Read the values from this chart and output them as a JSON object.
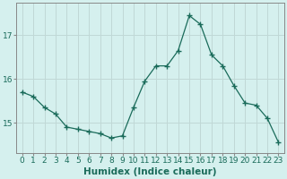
{
  "xlabel": "Humidex (Indice chaleur)",
  "x": [
    0,
    1,
    2,
    3,
    4,
    5,
    6,
    7,
    8,
    9,
    10,
    11,
    12,
    13,
    14,
    15,
    16,
    17,
    18,
    19,
    20,
    21,
    22,
    23
  ],
  "y": [
    15.7,
    15.6,
    15.35,
    15.2,
    14.9,
    14.85,
    14.8,
    14.75,
    14.65,
    14.7,
    15.35,
    15.95,
    16.3,
    16.3,
    16.65,
    17.45,
    17.25,
    16.55,
    16.3,
    15.85,
    15.45,
    15.4,
    15.1,
    14.55
  ],
  "line_color": "#1a6b5a",
  "marker": "+",
  "marker_size": 4,
  "bg_color": "#d5f0ee",
  "grid_color": "#c0d8d6",
  "axis_color": "#888888",
  "tick_label_color": "#1a6b5a",
  "xlabel_color": "#1a6b5a",
  "ylim": [
    14.3,
    17.75
  ],
  "yticks": [
    15,
    16,
    17
  ],
  "xtick_labels": [
    "0",
    "1",
    "2",
    "3",
    "4",
    "5",
    "6",
    "7",
    "8",
    "9",
    "10",
    "11",
    "12",
    "13",
    "14",
    "15",
    "16",
    "17",
    "18",
    "19",
    "20",
    "21",
    "22",
    "23"
  ],
  "axis_fontsize": 6.5,
  "label_fontsize": 7.5
}
